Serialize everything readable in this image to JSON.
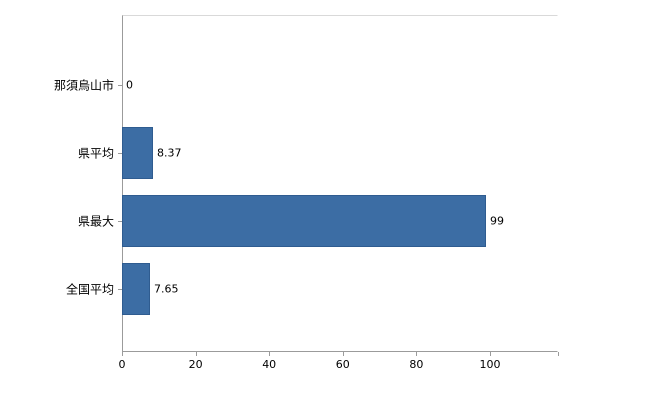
{
  "chart_data": {
    "type": "bar",
    "orientation": "horizontal",
    "title": "",
    "categories": [
      "那須烏山市",
      "県平均",
      "県最大",
      "全国平均"
    ],
    "values": [
      0,
      8.37,
      99,
      7.65
    ],
    "value_labels": [
      "0",
      "8.37",
      "99",
      "7.65"
    ],
    "xlim": [
      0,
      118.5
    ],
    "x_ticks": [
      0,
      20,
      40,
      60,
      80,
      100
    ],
    "x_tick_labels": [
      "0",
      "20",
      "40",
      "60",
      "80",
      "100"
    ],
    "legend": null,
    "grid": false,
    "bar_color": "#3c6da4",
    "bar_border_color": "#2f5c90",
    "axis_color": "#9b9b9b",
    "background_color": "#ffffff"
  }
}
